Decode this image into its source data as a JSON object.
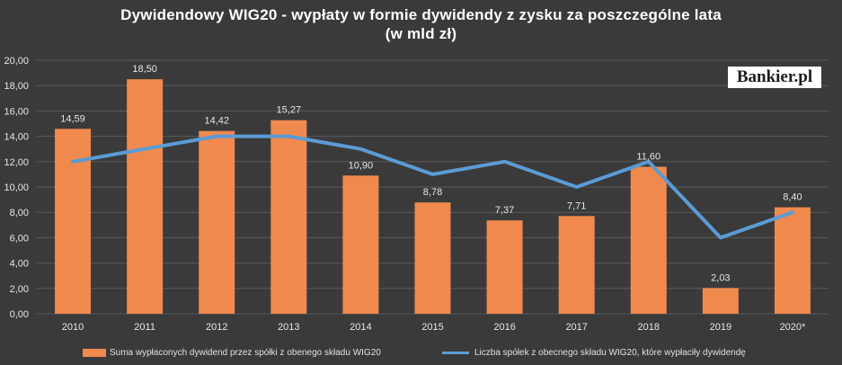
{
  "chart_data": {
    "type": "bar",
    "title_line1": "Dywidendowy WIG20 - wypłaty w formie dywidendy z zysku za poszczególne lata",
    "title_line2": "(w mld zł)",
    "categories": [
      "2010",
      "2011",
      "2012",
      "2013",
      "2014",
      "2015",
      "2016",
      "2017",
      "2018",
      "2019",
      "2020*"
    ],
    "series": [
      {
        "name": "Suma wypłaconych dywidend przez spółki z obenego składu WIG20",
        "type": "bar",
        "values": [
          14.59,
          18.5,
          14.42,
          15.27,
          10.9,
          8.78,
          7.37,
          7.71,
          11.6,
          2.03,
          8.4
        ],
        "labels": [
          "14,59",
          "18,50",
          "14,42",
          "15,27",
          "10,90",
          "8,78",
          "7,37",
          "7,71",
          "11,60",
          "2,03",
          "8,40"
        ],
        "color": "#f0894d"
      },
      {
        "name": "Liczba spółek z obecnego składu WIG20, które wypłaciły dywidendę",
        "type": "line",
        "values": [
          12,
          13,
          14,
          14,
          13,
          11,
          12,
          10,
          12,
          6,
          8
        ],
        "color": "#5b9bd5"
      }
    ],
    "ylim": [
      0,
      20
    ],
    "yticks": [
      "0,00",
      "2,00",
      "4,00",
      "6,00",
      "8,00",
      "10,00",
      "12,00",
      "14,00",
      "16,00",
      "18,00",
      "20,00"
    ],
    "grid": true,
    "legend_position": "bottom"
  },
  "branding": {
    "logo_text": "Bankier.pl"
  }
}
